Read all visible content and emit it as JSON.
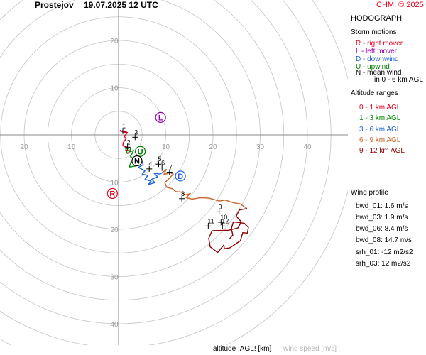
{
  "header": {
    "station": "Prostejov",
    "datetime": "19.07.2025 12 UTC",
    "credit": "CHMI © 2025"
  },
  "legend": {
    "title": "HODOGRAPH",
    "storm_motions_title": "Storm motions",
    "storm_motions": [
      {
        "label": "R - right mover",
        "color": "#e8001c"
      },
      {
        "label": "L - left mover",
        "color": "#9b00b0"
      },
      {
        "label": "D - downwind",
        "color": "#1e5fd8"
      },
      {
        "label": "U - upwind",
        "color": "#007a00"
      },
      {
        "label": "N - mean wind",
        "color": "#000000"
      }
    ],
    "mean_wind_note": "in 0 - 6 km AGL",
    "altitude_title": "Altitude ranges",
    "altitude_ranges": [
      {
        "label": "0 - 1 km AGL",
        "color": "#e8001c"
      },
      {
        "label": "1 - 3 km AGL",
        "color": "#008a00"
      },
      {
        "label": "3 - 6 km AGL",
        "color": "#1e64d0"
      },
      {
        "label": "6 - 9 km AGL",
        "color": "#c8642a"
      },
      {
        "label": "9 - 12 km AGL",
        "color": "#8a0000"
      }
    ],
    "wind_profile_title": "Wind profile",
    "wind_profile": [
      "bwd_01: 1.6 m/s",
      "bwd_03: 1.9 m/s",
      "bwd_06: 8.4 m/s",
      "bwd_08: 14.7 m/s",
      "srh_01: -12 m2/s2",
      "srh_03: 12 m2/s2"
    ]
  },
  "footer": {
    "altitude_label": "altitude !AGL! [km]",
    "speed_label": "wind speed [m/s]"
  },
  "chart_data": {
    "type": "line",
    "title": "HODOGRAPH",
    "axis_units": "m/s",
    "rings": [
      10,
      20,
      30,
      40
    ],
    "ring_labels": [
      "10",
      "20",
      "30",
      "40"
    ],
    "xlim": [
      -25,
      45
    ],
    "ylim": [
      -42,
      25
    ],
    "series": [
      {
        "name": "0 - 1 km AGL",
        "color": "#e8001c",
        "points": [
          [
            0.3,
            1.0
          ],
          [
            0.9,
            0.6
          ],
          [
            1.5,
            0.4
          ],
          [
            1.1,
            0.9
          ],
          [
            1.9,
            0.5
          ],
          [
            1.2,
            -0.3
          ],
          [
            1.6,
            -0.8
          ],
          [
            1.0,
            -1.6
          ],
          [
            0.9,
            -2.3
          ],
          [
            1.9,
            -2.6
          ],
          [
            1.5,
            -3.2
          ],
          [
            2.4,
            -3.4
          ],
          [
            1.9,
            -4.0
          ]
        ]
      },
      {
        "name": "1 - 3 km AGL",
        "color": "#008a00",
        "points": [
          [
            1.9,
            -4.0
          ],
          [
            1.5,
            -3.0
          ],
          [
            2.6,
            -2.7
          ],
          [
            2.3,
            -3.6
          ],
          [
            3.2,
            -3.3
          ],
          [
            2.5,
            -4.6
          ],
          [
            3.5,
            -5.2
          ],
          [
            2.6,
            -5.8
          ],
          [
            2.3,
            -6.8
          ],
          [
            3.5,
            -6.6
          ],
          [
            4.4,
            -6.3
          ],
          [
            4.8,
            -5.1
          ]
        ]
      },
      {
        "name": "3 - 6 km AGL",
        "color": "#1e64d0",
        "points": [
          [
            4.8,
            -5.1
          ],
          [
            5.2,
            -6.3
          ],
          [
            4.2,
            -6.9
          ],
          [
            5.6,
            -7.6
          ],
          [
            5.0,
            -8.3
          ],
          [
            6.2,
            -8.6
          ],
          [
            5.6,
            -9.4
          ],
          [
            6.9,
            -9.8
          ],
          [
            6.3,
            -10.5
          ],
          [
            7.7,
            -10.1
          ],
          [
            7.0,
            -9.4
          ],
          [
            8.3,
            -8.9
          ],
          [
            7.5,
            -8.1
          ],
          [
            8.8,
            -8.3
          ],
          [
            9.4,
            -7.9
          ]
        ]
      },
      {
        "name": "6 - 9 km AGL",
        "color": "#c8642a",
        "points": [
          [
            9.4,
            -7.9
          ],
          [
            10.1,
            -7.3
          ],
          [
            9.6,
            -8.4
          ],
          [
            10.9,
            -8.0
          ],
          [
            11.6,
            -8.3
          ],
          [
            10.7,
            -9.2
          ],
          [
            9.8,
            -10.1
          ],
          [
            10.2,
            -11.1
          ],
          [
            11.4,
            -11.4
          ],
          [
            12.1,
            -12.0
          ],
          [
            13.3,
            -12.1
          ],
          [
            14.1,
            -12.7
          ],
          [
            15.2,
            -12.4
          ],
          [
            14.3,
            -13.3
          ],
          [
            15.6,
            -13.6
          ],
          [
            17.4,
            -13.3
          ],
          [
            19.2,
            -13.4
          ],
          [
            21.3,
            -14.0
          ],
          [
            22.6,
            -13.8
          ],
          [
            24.5,
            -14.4
          ],
          [
            25.7,
            -14.6
          ],
          [
            27.2,
            -15.6
          ]
        ]
      },
      {
        "name": "9 - 12 km AGL",
        "color": "#8a0000",
        "points": [
          [
            27.2,
            -15.6
          ],
          [
            25.6,
            -15.9
          ],
          [
            24.9,
            -17.2
          ],
          [
            26.0,
            -18.4
          ],
          [
            25.3,
            -19.7
          ],
          [
            23.3,
            -20.2
          ],
          [
            19.8,
            -20.3
          ],
          [
            19.1,
            -21.9
          ],
          [
            19.4,
            -23.7
          ],
          [
            21.0,
            -24.9
          ],
          [
            22.3,
            -23.3
          ],
          [
            22.4,
            -24.1
          ],
          [
            23.6,
            -23.9
          ],
          [
            25.8,
            -22.4
          ],
          [
            26.3,
            -20.7
          ],
          [
            27.3,
            -20.8
          ],
          [
            27.5,
            -19.6
          ],
          [
            26.6,
            -18.7
          ],
          [
            24.3,
            -18.4
          ],
          [
            23.9,
            -19.9
          ],
          [
            24.2,
            -21.2
          ],
          [
            23.5,
            -22.0
          ]
        ]
      }
    ],
    "height_markers": [
      {
        "label": "1",
        "x": 0.9,
        "y": 0.8
      },
      {
        "label": "2",
        "x": 1.9,
        "y": -2.6
      },
      {
        "label": "3",
        "x": 3.5,
        "y": -0.5
      },
      {
        "label": "4",
        "x": 6.5,
        "y": -7.2
      },
      {
        "label": "5",
        "x": 8.5,
        "y": -6.2
      },
      {
        "label": "6",
        "x": 9.2,
        "y": -7.0
      },
      {
        "label": "7",
        "x": 10.8,
        "y": -7.9
      },
      {
        "label": "8",
        "x": 13.4,
        "y": -13.5
      },
      {
        "label": "9",
        "x": 21.3,
        "y": -16.3
      },
      {
        "label": "10",
        "x": 21.7,
        "y": -18.5
      },
      {
        "label": "11",
        "x": 19.0,
        "y": -19.3
      },
      {
        "label": "12",
        "x": 22.0,
        "y": -19.3
      }
    ],
    "storm_motions": [
      {
        "label": "R",
        "x": -1.3,
        "y": -12.4,
        "color": "#e8001c"
      },
      {
        "label": "L",
        "x": 8.9,
        "y": 3.7,
        "color": "#9b00b0"
      },
      {
        "label": "D",
        "x": 13.1,
        "y": -8.7,
        "color": "#1e5fd8"
      },
      {
        "label": "U",
        "x": 4.6,
        "y": -3.5,
        "color": "#007a00"
      },
      {
        "label": "N",
        "x": 3.9,
        "y": -5.5,
        "color": "#000000"
      }
    ]
  }
}
